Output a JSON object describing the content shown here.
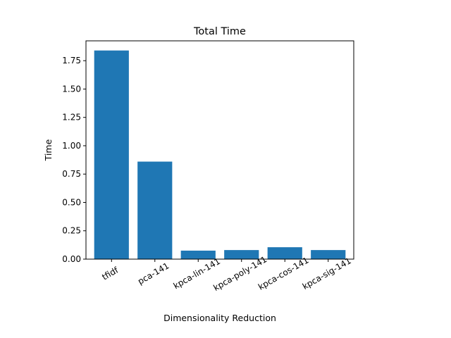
{
  "chart_data": {
    "type": "bar",
    "title": "Total Time",
    "xlabel": "Dimensionality Reduction",
    "ylabel": "Time",
    "categories": [
      "tfidf",
      "pca-141",
      "kpca-lin-141",
      "kpca-poly-141",
      "kpca-cos-141",
      "kpca-sig-141"
    ],
    "values": [
      1.84,
      0.86,
      0.075,
      0.08,
      0.105,
      0.08
    ],
    "ylim": [
      0,
      1.925
    ],
    "yticks": [
      "0.00",
      "0.25",
      "0.50",
      "0.75",
      "1.00",
      "1.25",
      "1.50",
      "1.75"
    ],
    "bar_color": "#1f77b4",
    "grid": false,
    "xtick_rotation": 30
  }
}
